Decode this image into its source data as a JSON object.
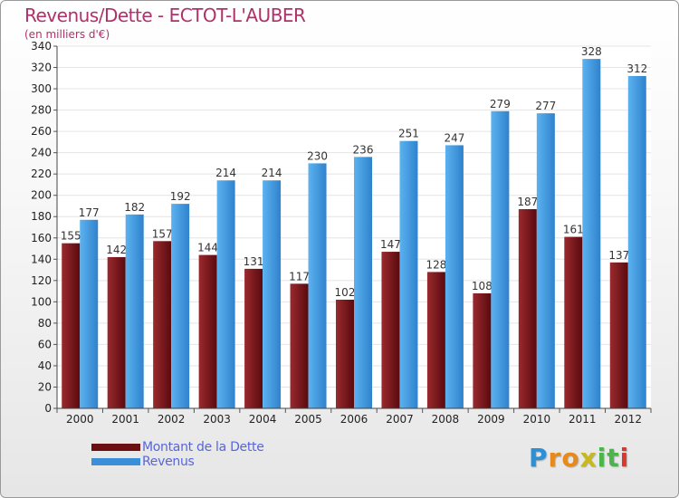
{
  "header": {
    "title": "Revenus/Dette - ECTOT-L'AUBER",
    "subtitle": "(en milliers d'€)"
  },
  "chart_data": {
    "type": "bar",
    "categories": [
      "2000",
      "2001",
      "2002",
      "2003",
      "2004",
      "2005",
      "2006",
      "2007",
      "2008",
      "2009",
      "2010",
      "2011",
      "2012"
    ],
    "series": [
      {
        "name": "Montant de la Dette",
        "color": "#7a1a1e",
        "values": [
          155,
          142,
          157,
          144,
          131,
          117,
          102,
          147,
          128,
          108,
          187,
          161,
          137
        ],
        "labels": [
          "155",
          "142",
          "157",
          "144",
          "131",
          "117",
          "102",
          "147",
          "128",
          "108",
          "187",
          "161",
          "137"
        ]
      },
      {
        "name": "Revenus",
        "color": "#4aa3e8",
        "values": [
          177,
          182,
          192,
          214,
          214,
          230,
          236,
          251,
          247,
          279,
          277,
          328,
          312
        ],
        "labels": [
          "177",
          "182",
          "192",
          "214",
          "214",
          "230",
          "236",
          "251",
          "247",
          "279",
          "277",
          "328",
          "312"
        ]
      }
    ],
    "ylim": [
      0,
      340
    ],
    "yticks": [
      "0",
      "20",
      "40",
      "60",
      "80",
      "100",
      "120",
      "140",
      "160",
      "180",
      "200",
      "220",
      "240",
      "260",
      "280",
      "300",
      "320",
      "340"
    ],
    "grid": true,
    "legend_position": "bottom-left"
  },
  "legend": {
    "items": [
      {
        "label": "Montant de la Dette",
        "color": "#6a0e12"
      },
      {
        "label": "Revenus",
        "color": "#3a8fd8"
      }
    ]
  },
  "brand": {
    "letters": [
      "P",
      "r",
      "o",
      "x",
      "i",
      "t",
      "i"
    ],
    "colors": [
      "#2d8fd6",
      "#e8891c",
      "#e8891c",
      "#c8b81f",
      "#4bb54b",
      "#4bb54b",
      "#d63a2d"
    ]
  }
}
